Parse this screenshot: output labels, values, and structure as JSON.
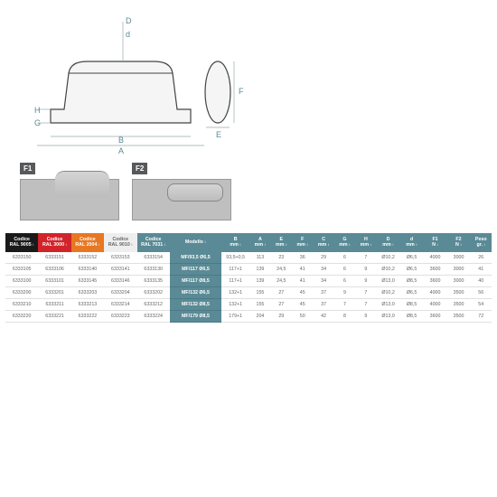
{
  "drawing_labels": [
    "D",
    "d",
    "H",
    "G",
    "B",
    "A",
    "F",
    "E"
  ],
  "force_labels": [
    "F1",
    "F2"
  ],
  "headers": [
    {
      "l1": "Codice",
      "l2": "RAL 9005",
      "bg": "#1a1a1a"
    },
    {
      "l1": "Codice",
      "l2": "RAL 3000",
      "bg": "#d2232a"
    },
    {
      "l1": "Codice",
      "l2": "RAL 2004",
      "bg": "#e87722"
    },
    {
      "l1": "Codice",
      "l2": "RAL 9010",
      "bg": "#eeeeee",
      "fg": "#666"
    },
    {
      "l1": "Codice",
      "l2": "RAL 7031",
      "bg": "#5a8a95"
    },
    {
      "l1": "Modello",
      "l2": "",
      "bg": "#5a8a95"
    },
    {
      "l1": "B",
      "l2": "mm",
      "bg": "#5a8a95"
    },
    {
      "l1": "A",
      "l2": "mm",
      "bg": "#5a8a95"
    },
    {
      "l1": "E",
      "l2": "mm",
      "bg": "#5a8a95"
    },
    {
      "l1": "F",
      "l2": "mm",
      "bg": "#5a8a95"
    },
    {
      "l1": "C",
      "l2": "mm",
      "bg": "#5a8a95"
    },
    {
      "l1": "G",
      "l2": "mm",
      "bg": "#5a8a95"
    },
    {
      "l1": "H",
      "l2": "mm",
      "bg": "#5a8a95"
    },
    {
      "l1": "D",
      "l2": "mm",
      "bg": "#5a8a95"
    },
    {
      "l1": "d",
      "l2": "mm",
      "bg": "#5a8a95"
    },
    {
      "l1": "F1",
      "l2": "N",
      "bg": "#5a8a95"
    },
    {
      "l1": "F2",
      "l2": "N",
      "bg": "#5a8a95"
    },
    {
      "l1": "Peso",
      "l2": "gr.",
      "bg": "#5a8a95"
    }
  ],
  "col_widths": [
    "7%",
    "7%",
    "7%",
    "7%",
    "7%",
    "11%",
    "6%",
    "4.5%",
    "4.5%",
    "4.5%",
    "4.5%",
    "4.5%",
    "4.5%",
    "5%",
    "5%",
    "5%",
    "5%",
    "4.5%"
  ],
  "rows": [
    [
      "6333150",
      "6333151",
      "6333152",
      "6333153",
      "6333154",
      "MF/93,5 Ø6,5",
      "93,5+0,5",
      "113",
      "23",
      "36",
      "29",
      "6",
      "7",
      "Ø10,2",
      "Ø6,5",
      "4000",
      "3000",
      "26"
    ],
    [
      "6333105",
      "6333106",
      "6333140",
      "6333141",
      "6333130",
      "MF/117 Ø6,5",
      "117+1",
      "139",
      "24,5",
      "41",
      "34",
      "6",
      "9",
      "Ø10,2",
      "Ø6,5",
      "3600",
      "3000",
      "41"
    ],
    [
      "6333100",
      "6333101",
      "6333145",
      "6333146",
      "6333135",
      "MF/117 Ø8,5",
      "117+1",
      "139",
      "24,5",
      "41",
      "34",
      "6",
      "9",
      "Ø13,0",
      "Ø8,5",
      "3600",
      "3000",
      "40"
    ],
    [
      "6333200",
      "6333201",
      "6333203",
      "6333204",
      "6333202",
      "MF/132 Ø6,5",
      "132+1",
      "155",
      "27",
      "45",
      "37",
      "9",
      "7",
      "Ø10,2",
      "Ø6,5",
      "4000",
      "3500",
      "56"
    ],
    [
      "6333210",
      "6333211",
      "6333213",
      "6333214",
      "6333212",
      "MF/132 Ø8,5",
      "132+1",
      "155",
      "27",
      "45",
      "37",
      "7",
      "7",
      "Ø13,0",
      "Ø8,5",
      "4000",
      "3500",
      "54"
    ],
    [
      "6333220",
      "6333221",
      "6333222",
      "6333223",
      "6333224",
      "MF/179 Ø8,5",
      "179+1",
      "204",
      "29",
      "50",
      "42",
      "8",
      "9",
      "Ø13,0",
      "Ø8,5",
      "3600",
      "3500",
      "72"
    ]
  ]
}
